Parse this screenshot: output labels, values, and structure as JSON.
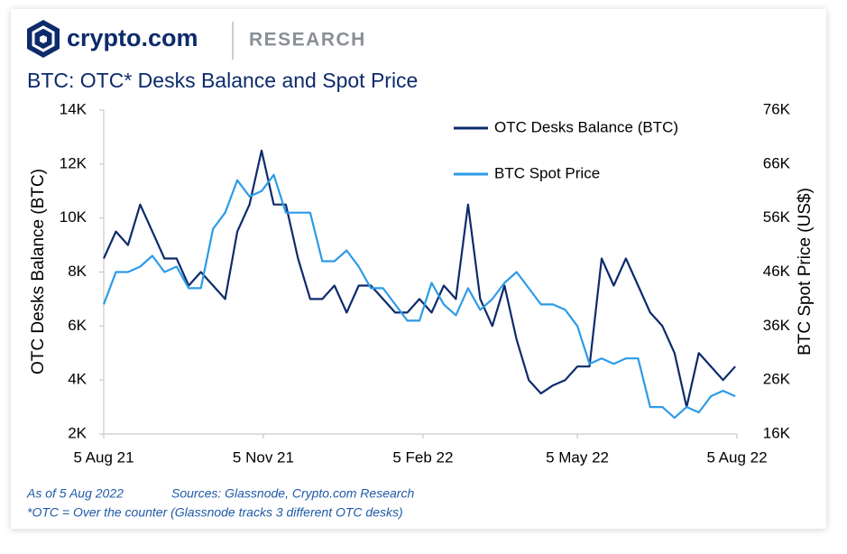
{
  "header": {
    "brand": "crypto.com",
    "section": "RESEARCH"
  },
  "chart_data": {
    "type": "line",
    "title": "BTC: OTC* Desks Balance and Spot Price",
    "ylabel": "OTC Desks Balance (BTC)",
    "y2label": "BTC Spot Price (US$)",
    "x": [
      "2021-08-05",
      "2021-08-12",
      "2021-08-19",
      "2021-08-26",
      "2021-09-02",
      "2021-09-09",
      "2021-09-16",
      "2021-09-23",
      "2021-09-30",
      "2021-10-07",
      "2021-10-14",
      "2021-10-21",
      "2021-10-28",
      "2021-11-04",
      "2021-11-11",
      "2021-11-18",
      "2021-11-25",
      "2021-12-02",
      "2021-12-09",
      "2021-12-16",
      "2021-12-23",
      "2021-12-30",
      "2022-01-06",
      "2022-01-13",
      "2022-01-20",
      "2022-01-27",
      "2022-02-03",
      "2022-02-10",
      "2022-02-17",
      "2022-02-24",
      "2022-03-03",
      "2022-03-10",
      "2022-03-17",
      "2022-03-24",
      "2022-03-31",
      "2022-04-07",
      "2022-04-14",
      "2022-04-21",
      "2022-04-28",
      "2022-05-05",
      "2022-05-12",
      "2022-05-19",
      "2022-05-26",
      "2022-06-02",
      "2022-06-09",
      "2022-06-16",
      "2022-06-23",
      "2022-06-30",
      "2022-07-07",
      "2022-07-14",
      "2022-07-21",
      "2022-07-28",
      "2022-08-04"
    ],
    "xlim": [
      "2021-08-05",
      "2022-08-05"
    ],
    "xticks": [
      {
        "value": "2021-08-05",
        "label": "5 Aug 21"
      },
      {
        "value": "2021-11-05",
        "label": "5 Nov 21"
      },
      {
        "value": "2022-02-05",
        "label": "5 Feb 22"
      },
      {
        "value": "2022-05-05",
        "label": "5 May 22"
      },
      {
        "value": "2022-08-05",
        "label": "5 Aug 22"
      }
    ],
    "ylim": [
      2000,
      14000
    ],
    "yticks": [
      {
        "value": 2000,
        "label": "2K"
      },
      {
        "value": 4000,
        "label": "4K"
      },
      {
        "value": 6000,
        "label": "6K"
      },
      {
        "value": 8000,
        "label": "8K"
      },
      {
        "value": 10000,
        "label": "10K"
      },
      {
        "value": 12000,
        "label": "12K"
      },
      {
        "value": 14000,
        "label": "14K"
      }
    ],
    "y2lim": [
      16000,
      76000
    ],
    "y2ticks": [
      {
        "value": 16000,
        "label": "16K"
      },
      {
        "value": 26000,
        "label": "26K"
      },
      {
        "value": 36000,
        "label": "36K"
      },
      {
        "value": 46000,
        "label": "46K"
      },
      {
        "value": 56000,
        "label": "56K"
      },
      {
        "value": 66000,
        "label": "66K"
      },
      {
        "value": 76000,
        "label": "76K"
      }
    ],
    "series": [
      {
        "name": "OTC Desks Balance (BTC)",
        "color": "#0d2b6b",
        "values": [
          8500,
          9500,
          9000,
          10500,
          9500,
          8500,
          8500,
          7500,
          8000,
          7500,
          7000,
          9500,
          10500,
          12500,
          10500,
          10500,
          8500,
          7000,
          7000,
          7500,
          6500,
          7500,
          7500,
          7000,
          6500,
          6500,
          7000,
          6500,
          7500,
          7000,
          10500,
          7000,
          6000,
          7500,
          5500,
          4000,
          3500,
          3800,
          4000,
          4500,
          4500,
          8500,
          7500,
          8500,
          7500,
          6500,
          6000,
          5000,
          3000,
          5000,
          4500,
          4000,
          4500
        ]
      },
      {
        "name": "BTC Spot Price",
        "color": "#2c9be8",
        "axis": "y2",
        "values": [
          40000,
          46000,
          46000,
          47000,
          49000,
          46000,
          47000,
          43000,
          43000,
          54000,
          57000,
          63000,
          60000,
          61000,
          64000,
          57000,
          57000,
          57000,
          48000,
          48000,
          50000,
          47000,
          43000,
          43000,
          40000,
          37000,
          37000,
          44000,
          40000,
          38000,
          43000,
          39000,
          41000,
          44000,
          46000,
          43000,
          40000,
          40000,
          39000,
          36000,
          29000,
          30000,
          29000,
          30000,
          30000,
          21000,
          21000,
          19000,
          21000,
          20000,
          23000,
          24000,
          23000
        ]
      }
    ],
    "notes": [
      "As of 5 Aug 2022",
      "Sources: Glassnode, Crypto.com Research",
      "*OTC = Over the counter (Glassnode tracks 3 different OTC desks)"
    ]
  }
}
